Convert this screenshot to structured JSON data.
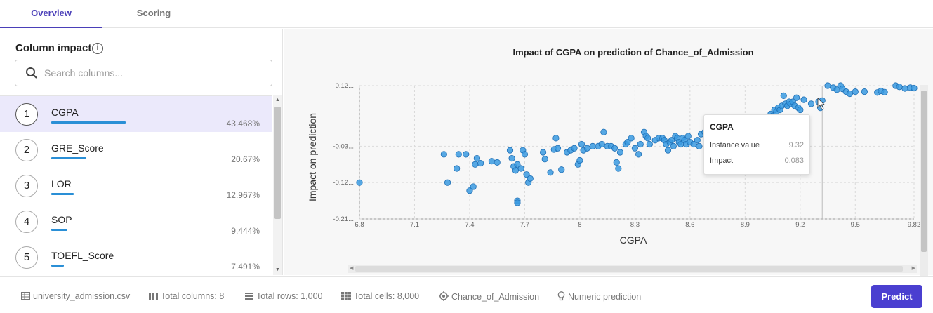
{
  "tabs": [
    {
      "label": "Overview"
    },
    {
      "label": "Scoring"
    }
  ],
  "sidebar": {
    "title": "Column impact",
    "search_placeholder": "Search columns...",
    "items": [
      {
        "rank": "1",
        "name": "CGPA",
        "pct": "43.468%",
        "value": 43.468
      },
      {
        "rank": "2",
        "name": "GRE_Score",
        "pct": "20.67%",
        "value": 20.67
      },
      {
        "rank": "3",
        "name": "LOR",
        "pct": "12.967%",
        "value": 12.967
      },
      {
        "rank": "4",
        "name": "SOP",
        "pct": "9.444%",
        "value": 9.444
      },
      {
        "rank": "5",
        "name": "TOEFL_Score",
        "pct": "7.491%",
        "value": 7.491
      }
    ]
  },
  "chart_data": {
    "type": "scatter",
    "title": "Impact of CGPA on prediction of Chance_of_Admission",
    "xlabel": "CGPA",
    "ylabel": "Impact on prediction",
    "xticks": [
      "6.8",
      "7.1",
      "7.4",
      "7.7",
      "8",
      "8.3",
      "8.6",
      "8.9",
      "9.2",
      "9.5",
      "9.82"
    ],
    "xtick_values": [
      6.8,
      7.1,
      7.4,
      7.7,
      8,
      8.3,
      8.6,
      8.9,
      9.2,
      9.5,
      9.82
    ],
    "yticks": [
      "0.12...",
      "-0.03...",
      "-0.12...",
      "-0.21..."
    ],
    "ytick_values": [
      0.12,
      -0.03,
      -0.12,
      -0.21
    ],
    "xlim": [
      6.8,
      9.82
    ],
    "ylim": [
      -0.21,
      0.12
    ],
    "grid": true,
    "color": "#3a9ae0",
    "points": [
      [
        6.8,
        -0.12
      ],
      [
        7.26,
        -0.05
      ],
      [
        7.28,
        -0.12
      ],
      [
        7.33,
        -0.085
      ],
      [
        7.34,
        -0.05
      ],
      [
        7.38,
        -0.05
      ],
      [
        7.4,
        -0.14
      ],
      [
        7.42,
        -0.13
      ],
      [
        7.43,
        -0.075
      ],
      [
        7.44,
        -0.06
      ],
      [
        7.46,
        -0.072
      ],
      [
        7.52,
        -0.067
      ],
      [
        7.55,
        -0.07
      ],
      [
        7.62,
        -0.04
      ],
      [
        7.63,
        -0.06
      ],
      [
        7.64,
        -0.08
      ],
      [
        7.65,
        -0.09
      ],
      [
        7.66,
        -0.075
      ],
      [
        7.68,
        -0.085
      ],
      [
        7.69,
        -0.04
      ],
      [
        7.7,
        -0.05
      ],
      [
        7.71,
        -0.1
      ],
      [
        7.72,
        -0.12
      ],
      [
        7.73,
        -0.11
      ],
      [
        7.66,
        -0.165
      ],
      [
        7.66,
        -0.17
      ],
      [
        7.8,
        -0.045
      ],
      [
        7.81,
        -0.062
      ],
      [
        7.84,
        -0.095
      ],
      [
        7.86,
        -0.038
      ],
      [
        7.88,
        -0.035
      ],
      [
        7.9,
        -0.088
      ],
      [
        7.87,
        -0.01
      ],
      [
        7.93,
        -0.045
      ],
      [
        7.95,
        -0.04
      ],
      [
        7.97,
        -0.035
      ],
      [
        7.99,
        -0.075
      ],
      [
        8.0,
        -0.065
      ],
      [
        8.01,
        -0.025
      ],
      [
        8.02,
        -0.04
      ],
      [
        8.04,
        -0.035
      ],
      [
        8.07,
        -0.03
      ],
      [
        8.1,
        -0.03
      ],
      [
        8.12,
        -0.025
      ],
      [
        8.13,
        0.005
      ],
      [
        8.15,
        -0.03
      ],
      [
        8.17,
        -0.03
      ],
      [
        8.19,
        -0.035
      ],
      [
        8.2,
        -0.07
      ],
      [
        8.21,
        -0.085
      ],
      [
        8.22,
        -0.045
      ],
      [
        8.25,
        -0.025
      ],
      [
        8.26,
        -0.02
      ],
      [
        8.28,
        -0.01
      ],
      [
        8.3,
        -0.035
      ],
      [
        8.32,
        -0.05
      ],
      [
        8.33,
        -0.025
      ],
      [
        8.35,
        0.005
      ],
      [
        8.36,
        -0.005
      ],
      [
        8.37,
        -0.01
      ],
      [
        8.38,
        -0.025
      ],
      [
        8.41,
        -0.015
      ],
      [
        8.43,
        -0.01
      ],
      [
        8.45,
        -0.01
      ],
      [
        8.46,
        -0.015
      ],
      [
        8.47,
        -0.025
      ],
      [
        8.48,
        -0.04
      ],
      [
        8.49,
        -0.02
      ],
      [
        8.5,
        -0.015
      ],
      [
        8.51,
        -0.03
      ],
      [
        8.52,
        -0.005
      ],
      [
        8.53,
        -0.01
      ],
      [
        8.54,
        -0.02
      ],
      [
        8.55,
        -0.025
      ],
      [
        8.56,
        -0.01
      ],
      [
        8.57,
        -0.015
      ],
      [
        8.58,
        -0.025
      ],
      [
        8.59,
        -0.005
      ],
      [
        8.6,
        -0.02
      ],
      [
        8.62,
        -0.025
      ],
      [
        8.64,
        -0.015
      ],
      [
        8.65,
        -0.03
      ],
      [
        8.66,
        0.0
      ],
      [
        8.68,
        0.005
      ],
      [
        8.7,
        -0.02
      ],
      [
        8.72,
        0.005
      ],
      [
        8.74,
        -0.03
      ],
      [
        8.76,
        -0.025
      ],
      [
        8.78,
        0.01
      ],
      [
        8.8,
        0.0
      ],
      [
        8.82,
        0.015
      ],
      [
        8.85,
        0.02
      ],
      [
        8.88,
        -0.02
      ],
      [
        8.9,
        -0.01
      ],
      [
        8.92,
        0.005
      ],
      [
        8.95,
        0.025
      ],
      [
        8.97,
        0.015
      ],
      [
        9.0,
        0.04
      ],
      [
        9.02,
        0.035
      ],
      [
        9.04,
        0.05
      ],
      [
        9.05,
        0.045
      ],
      [
        9.06,
        0.06
      ],
      [
        9.07,
        0.055
      ],
      [
        9.08,
        0.065
      ],
      [
        9.09,
        0.06
      ],
      [
        9.1,
        0.07
      ],
      [
        9.11,
        0.095
      ],
      [
        9.12,
        0.075
      ],
      [
        9.13,
        0.07
      ],
      [
        9.14,
        0.08
      ],
      [
        9.15,
        0.075
      ],
      [
        9.16,
        0.08
      ],
      [
        9.17,
        0.07
      ],
      [
        9.18,
        0.09
      ],
      [
        9.19,
        0.065
      ],
      [
        9.2,
        0.06
      ],
      [
        9.22,
        0.085
      ],
      [
        9.26,
        0.075
      ],
      [
        9.3,
        0.08
      ],
      [
        9.31,
        0.065
      ],
      [
        9.32,
        0.083
      ],
      [
        9.35,
        0.12
      ],
      [
        9.38,
        0.115
      ],
      [
        9.4,
        0.11
      ],
      [
        9.42,
        0.12
      ],
      [
        9.43,
        0.112
      ],
      [
        9.45,
        0.105
      ],
      [
        9.47,
        0.1
      ],
      [
        9.5,
        0.105
      ],
      [
        9.55,
        0.105
      ],
      [
        9.62,
        0.103
      ],
      [
        9.64,
        0.107
      ],
      [
        9.66,
        0.104
      ],
      [
        9.72,
        0.12
      ],
      [
        9.74,
        0.117
      ],
      [
        9.77,
        0.113
      ],
      [
        9.8,
        0.115
      ],
      [
        9.82,
        0.114
      ]
    ],
    "selected_point": [
      9.32,
      0.083
    ]
  },
  "tooltip": {
    "title": "CGPA",
    "rows": [
      {
        "label": "Instance value",
        "value": "9.32"
      },
      {
        "label": "Impact",
        "value": "0.083"
      }
    ]
  },
  "footer": {
    "file": "university_admission.csv",
    "columns": "Total columns: 8",
    "rows": "Total rows: 1,000",
    "cells": "Total cells: 8,000",
    "target": "Chance_of_Admission",
    "type": "Numeric prediction",
    "predict_label": "Predict"
  }
}
